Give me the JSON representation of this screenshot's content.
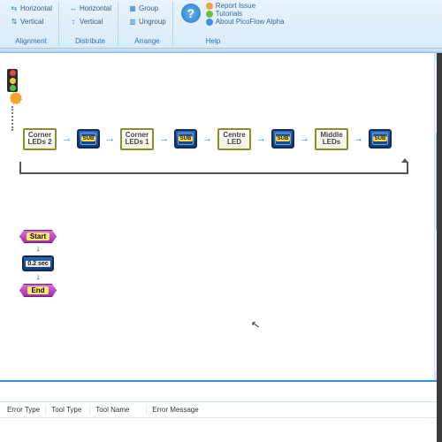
{
  "ribbon": {
    "alignment": {
      "label": "Alignment",
      "horizontal": "Horizontal",
      "vertical": "Vertical"
    },
    "distribute": {
      "label": "Distribute",
      "horizontal": "Horizontal",
      "vertical": "Vertical"
    },
    "arrange": {
      "label": "Arrange",
      "group": "Group",
      "ungroup": "Ungroup"
    },
    "help": {
      "label": "Help",
      "report_issue": "Report Issue",
      "tutorials": "Tutorials",
      "about": "About PicoFlow Alpha"
    }
  },
  "flow": {
    "nodes": [
      {
        "type": "proc",
        "label": "Corner\nLEDs 2"
      },
      {
        "type": "sub",
        "label": "SUB"
      },
      {
        "type": "proc",
        "label": "Corner\nLEDs 1"
      },
      {
        "type": "sub",
        "label": "SUB"
      },
      {
        "type": "proc",
        "label": "Centre\nLED"
      },
      {
        "type": "sub",
        "label": "SUB"
      },
      {
        "type": "proc",
        "label": "Middle\nLEDs"
      },
      {
        "type": "sub",
        "label": "SUB"
      }
    ],
    "stack": {
      "start": "Start",
      "delay": "0.2 sec",
      "end": "End"
    }
  },
  "error_panel": {
    "columns": [
      "Error Type",
      "Tool Type",
      "Tool Name",
      "Error Message"
    ]
  },
  "colors": {
    "accent_blue": "#2a92d8",
    "node_border": "#8a8f2e",
    "sub_fill_top": "#2b69b8",
    "sub_fill_bottom": "#0e3d7a",
    "hex_fill": "#d96bdc"
  }
}
